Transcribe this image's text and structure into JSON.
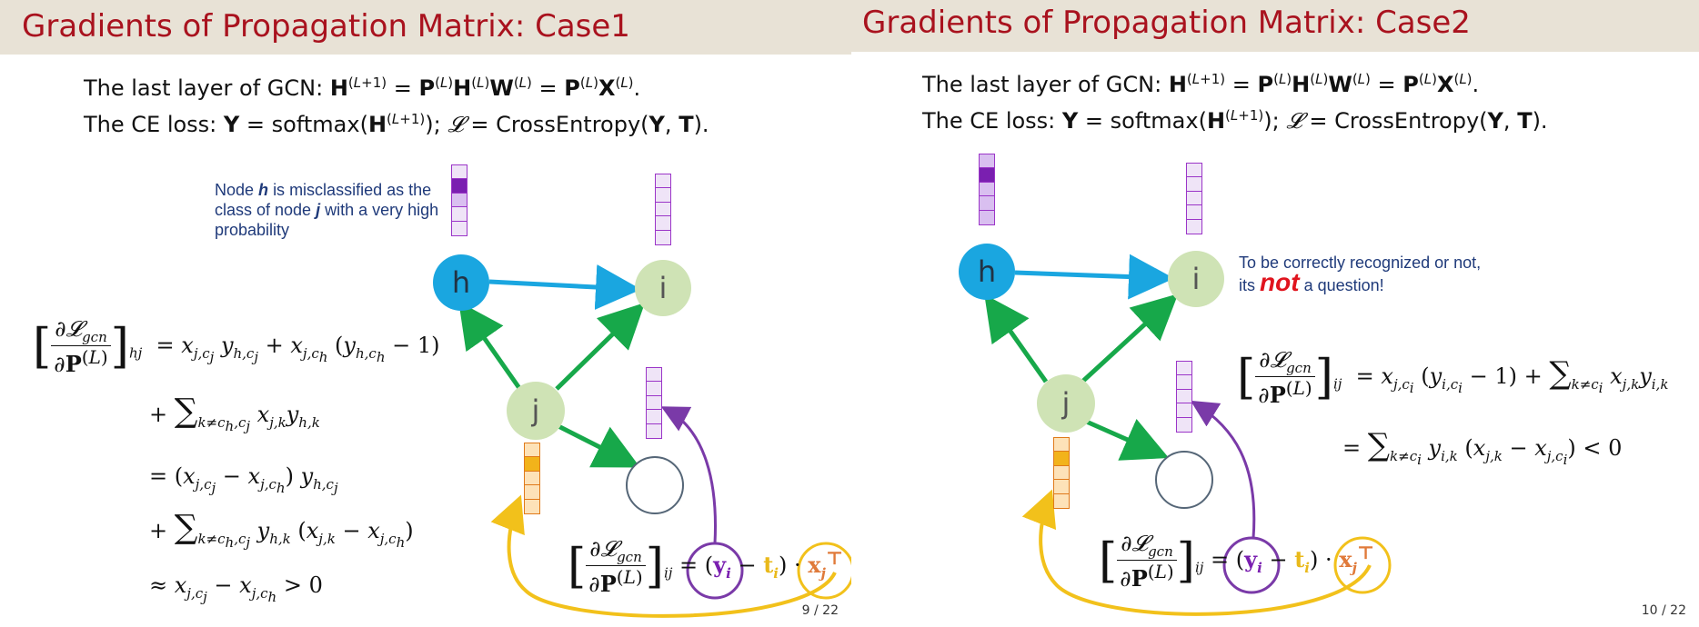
{
  "slides": [
    {
      "title": "Gradients of Propagation Matrix: Case1",
      "line1_prefix": "The last layer of GCN:",
      "line2_prefix": "The CE loss:",
      "note_part1": "Node",
      "note_h": "h",
      "note_part2": "is misclassified as the class of node",
      "note_j": "j",
      "note_part3": "with a very high probability",
      "node_labels": {
        "h": "h",
        "i": "i",
        "j": "j"
      },
      "page_number": "9 / 22"
    },
    {
      "title": "Gradients of Propagation Matrix: Case2",
      "line1_prefix": "The last layer of GCN:",
      "line2_prefix": "The CE loss:",
      "note_part1": "To be correctly recognized or not,",
      "note_part2": "its",
      "note_not": "not",
      "note_part3": "a question!",
      "node_labels": {
        "h": "h",
        "i": "i",
        "j": "j"
      },
      "page_number": "10 / 22"
    }
  ],
  "colors": {
    "title": "#a9121e",
    "title_bar": "#e8e2d6",
    "arrow_blue": "#1aa6e0",
    "arrow_green": "#17a84a",
    "arrow_purple": "#7a3aa8",
    "arrow_yellow": "#f2c11b"
  }
}
